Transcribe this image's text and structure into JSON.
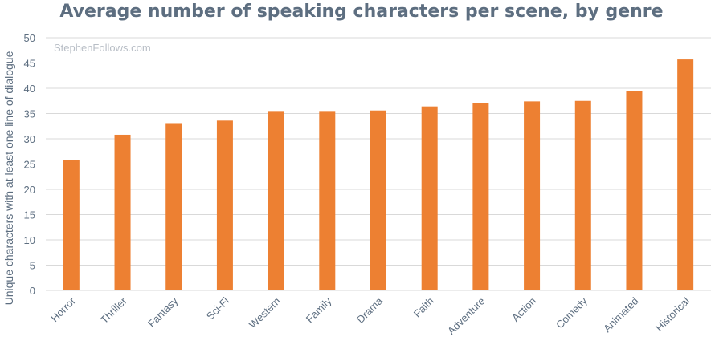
{
  "chart_data": {
    "type": "bar",
    "title": "Average number of speaking characters per scene, by genre",
    "xlabel": "",
    "ylabel": "Unique characters with at least one line of dialogue",
    "watermark": "StephenFollows.com",
    "categories": [
      "Horror",
      "Thriller",
      "Fantasy",
      "Sci-Fi",
      "Western",
      "Family",
      "Drama",
      "Faith",
      "Adventure",
      "Action",
      "Comedy",
      "Animated",
      "Historical"
    ],
    "values": [
      25.8,
      30.8,
      33.1,
      33.6,
      35.5,
      35.5,
      35.6,
      36.4,
      37.1,
      37.4,
      37.5,
      39.4,
      45.7
    ],
    "ylim": [
      0,
      50
    ],
    "yticks": [
      0,
      5,
      10,
      15,
      20,
      25,
      30,
      35,
      40,
      45,
      50
    ],
    "grid": true,
    "colors": {
      "bar": "#ed8032",
      "grid": "#d9d9d9",
      "text": "#5d6e80"
    }
  }
}
